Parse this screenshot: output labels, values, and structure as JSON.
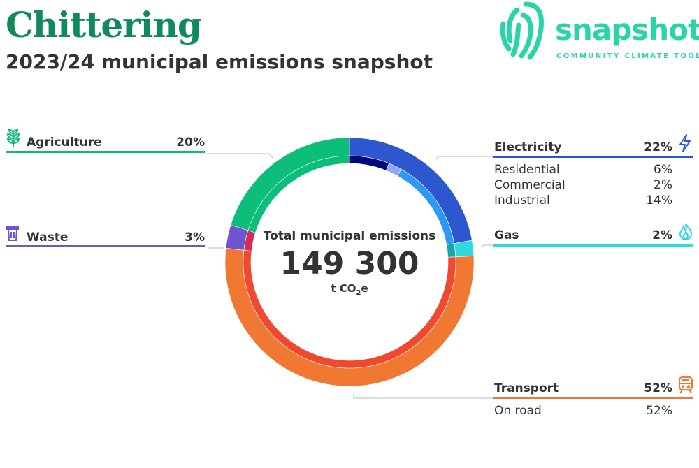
{
  "header": {
    "title": "Chittering",
    "subtitle": "2023/24 municipal emissions snapshot"
  },
  "logo": {
    "word": "snapshot",
    "tagline": "COMMUNITY CLIMATE TOOL",
    "color": "#2bd4a8"
  },
  "center": {
    "label": "Total municipal emissions",
    "value": "149 300",
    "unit_main": "t CO",
    "unit_sub": "2",
    "unit_tail": "e"
  },
  "chart_data": {
    "type": "donut",
    "total": 149300,
    "unit": "t CO2e",
    "outer": [
      {
        "name": "Electricity",
        "percent": 22,
        "color": "#2d57cf",
        "icon": "lightning-icon"
      },
      {
        "name": "Gas",
        "percent": 2,
        "color": "#2fd9dc",
        "icon": "flame-icon"
      },
      {
        "name": "Transport",
        "percent": 52,
        "color": "#f07833",
        "icon": "train-icon"
      },
      {
        "name": "Waste",
        "percent": 3,
        "color": "#6e55cf",
        "icon": "trash-bin-icon"
      },
      {
        "name": "Agriculture",
        "percent": 20,
        "color": "#0dbd7a",
        "icon": "plant-icon"
      }
    ],
    "inner": [
      {
        "name": "Residential",
        "parent": "Electricity",
        "percent": 6,
        "color": "#00097a"
      },
      {
        "name": "Commercial",
        "parent": "Electricity",
        "percent": 2,
        "color": "#8fa6f2"
      },
      {
        "name": "Industrial",
        "parent": "Electricity",
        "percent": 14,
        "color": "#2d98f5"
      },
      {
        "name": "Gas",
        "parent": "Gas",
        "percent": 2,
        "color": "#1aa6a6"
      },
      {
        "name": "On road",
        "parent": "Transport",
        "percent": 52,
        "color": "#ef4a30"
      },
      {
        "name": "Waste",
        "parent": "Waste",
        "percent": 3,
        "color": "#d42b57"
      },
      {
        "name": "Agriculture",
        "parent": "Agriculture",
        "percent": 20,
        "color": "#0dbd7a"
      }
    ]
  },
  "legend": {
    "agriculture": {
      "label": "Agriculture",
      "pct": "20%"
    },
    "waste": {
      "label": "Waste",
      "pct": "3%"
    },
    "electricity": {
      "label": "Electricity",
      "pct": "22%",
      "subs": [
        {
          "label": "Residential",
          "pct": "6%"
        },
        {
          "label": "Commercial",
          "pct": "2%"
        },
        {
          "label": "Industrial",
          "pct": "14%"
        }
      ]
    },
    "gas": {
      "label": "Gas",
      "pct": "2%"
    },
    "transport": {
      "label": "Transport",
      "pct": "52%",
      "subs": [
        {
          "label": "On road",
          "pct": "52%"
        }
      ]
    }
  }
}
